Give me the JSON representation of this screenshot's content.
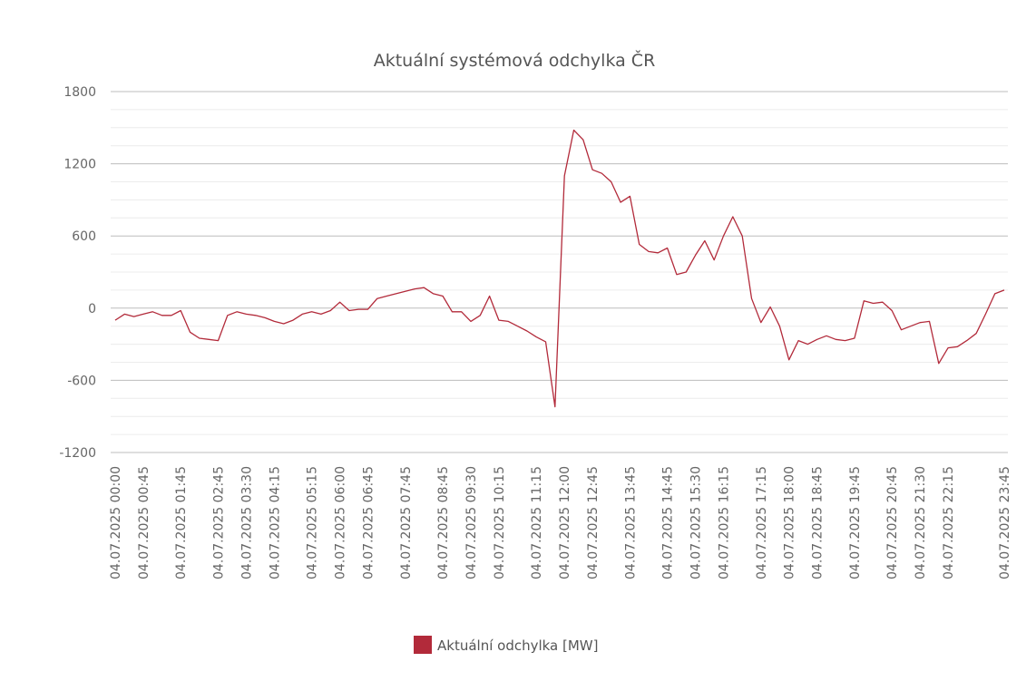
{
  "chart_data": {
    "type": "line",
    "title": "Aktuální systémová odchylka ČR",
    "categories": [
      "04.07.2025 00:00",
      null,
      null,
      "04.07.2025 00:45",
      null,
      null,
      null,
      "04.07.2025 01:45",
      null,
      null,
      null,
      "04.07.2025 02:45",
      null,
      null,
      "04.07.2025 03:30",
      null,
      null,
      "04.07.2025 04:15",
      null,
      null,
      null,
      "04.07.2025 05:15",
      null,
      null,
      "04.07.2025 06:00",
      null,
      null,
      "04.07.2025 06:45",
      null,
      null,
      null,
      "04.07.2025 07:45",
      null,
      null,
      null,
      "04.07.2025 08:45",
      null,
      null,
      "04.07.2025 09:30",
      null,
      null,
      "04.07.2025 10:15",
      null,
      null,
      null,
      "04.07.2025 11:15",
      null,
      null,
      "04.07.2025 12:00",
      null,
      null,
      "04.07.2025 12:45",
      null,
      null,
      null,
      "04.07.2025 13:45",
      null,
      null,
      null,
      "04.07.2025 14:45",
      null,
      null,
      "04.07.2025 15:30",
      null,
      null,
      "04.07.2025 16:15",
      null,
      null,
      null,
      "04.07.2025 17:15",
      null,
      null,
      "04.07.2025 18:00",
      null,
      null,
      "04.07.2025 18:45",
      null,
      null,
      null,
      "04.07.2025 19:45",
      null,
      null,
      null,
      "04.07.2025 20:45",
      null,
      null,
      "04.07.2025 21:30",
      null,
      null,
      "04.07.2025 22:15",
      null,
      null,
      null,
      null,
      null,
      "04.07.2025 23:45"
    ],
    "series": [
      {
        "name": "Aktuální odchylka [MW]",
        "color": "#b22a3a",
        "values": [
          -100,
          -50,
          -70,
          -50,
          -30,
          -60,
          -60,
          -20,
          -200,
          -250,
          -260,
          -270,
          -60,
          -30,
          -50,
          -60,
          -80,
          -110,
          -130,
          -100,
          -50,
          -30,
          -50,
          -20,
          50,
          -20,
          -10,
          -10,
          80,
          100,
          120,
          140,
          160,
          170,
          120,
          100,
          -30,
          -30,
          -110,
          -60,
          100,
          -100,
          -110,
          -150,
          -190,
          -240,
          -280,
          -820,
          1100,
          1480,
          1400,
          1150,
          1120,
          1050,
          880,
          930,
          530,
          470,
          460,
          500,
          280,
          300,
          440,
          560,
          400,
          600,
          760,
          600,
          80,
          -120,
          10,
          -150,
          -430,
          -270,
          -300,
          -260,
          -230,
          -260,
          -270,
          -250,
          60,
          40,
          50,
          -20,
          -180,
          -150,
          -120,
          -110,
          -460,
          -330,
          -320,
          -270,
          -210,
          -50,
          120,
          150
        ]
      }
    ],
    "ylim": [
      -1200,
      1800
    ],
    "yticks": [
      -1200,
      -600,
      0,
      600,
      1200,
      1800
    ],
    "yminorticks": [
      -1050,
      -900,
      -750,
      -450,
      -300,
      -150,
      150,
      300,
      450,
      750,
      900,
      1050,
      1350,
      1500,
      1650
    ],
    "grid": true,
    "legend": "bottom"
  }
}
